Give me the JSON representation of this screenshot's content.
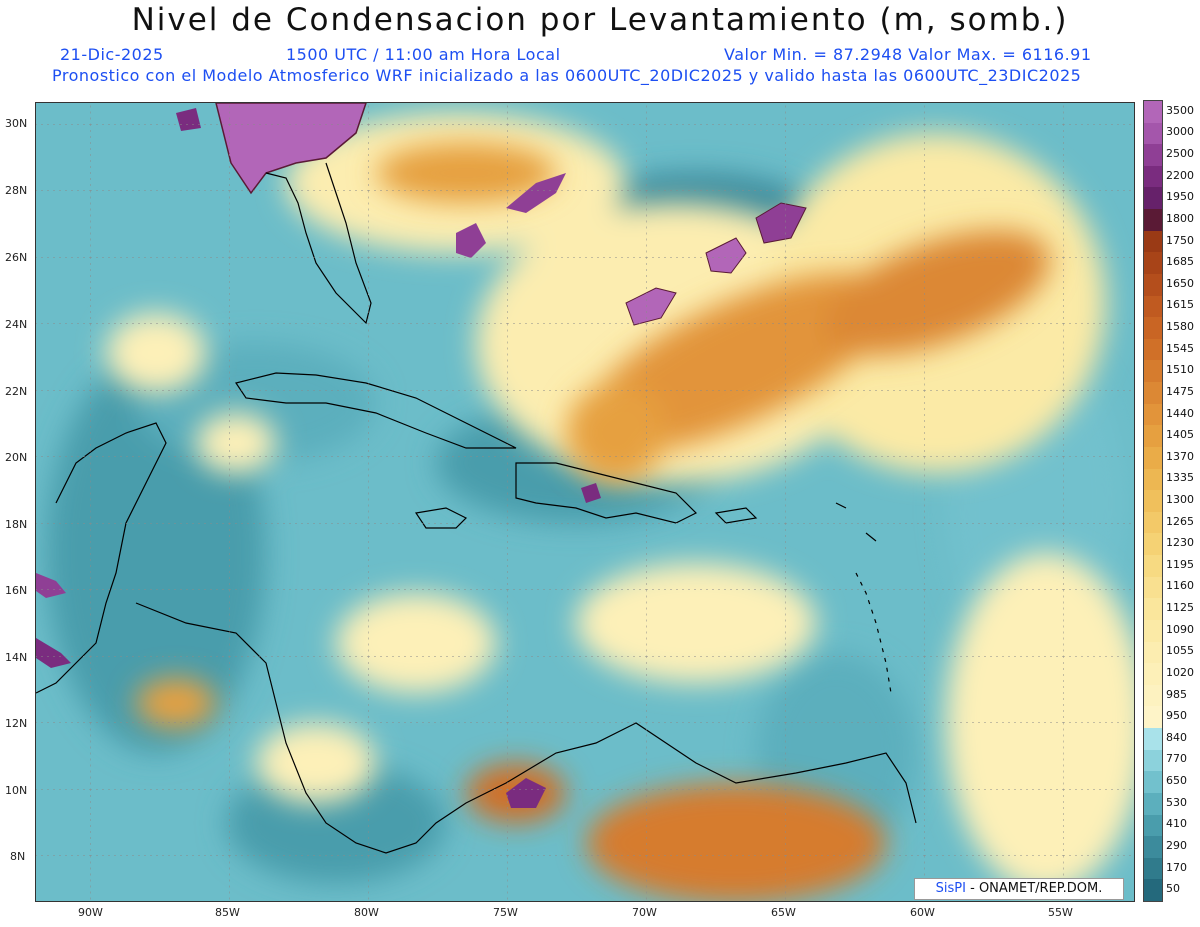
{
  "header": {
    "title": "Nivel de Condensacion por Levantamiento (m, somb.)",
    "date": "21-Dic-2025",
    "time": "1500 UTC / 11:00 am Hora Local",
    "minmax": "Valor Min. = 87.2948   Valor Max. = 6116.91",
    "model_info": "Pronostico con el Modelo Atmosferico WRF inicializado a las 0600UTC_20DIC2025 y valido hasta las  0600UTC_23DIC2025"
  },
  "axes": {
    "lat_labels": [
      "30N",
      "28N",
      "26N",
      "24N",
      "22N",
      "20N",
      "18N",
      "16N",
      "14N",
      "12N",
      "10N",
      "8N"
    ],
    "lon_labels": [
      "90W",
      "85W",
      "80W",
      "75W",
      "70W",
      "65W",
      "60W",
      "55W"
    ]
  },
  "colorbar": {
    "labels": [
      "3500",
      "3000",
      "2500",
      "2200",
      "1950",
      "1800",
      "1750",
      "1685",
      "1650",
      "1615",
      "1580",
      "1545",
      "1510",
      "1475",
      "1440",
      "1405",
      "1370",
      "1335",
      "1300",
      "1265",
      "1230",
      "1195",
      "1160",
      "1125",
      "1090",
      "1055",
      "1020",
      "985",
      "950",
      "840",
      "770",
      "650",
      "530",
      "410",
      "290",
      "170",
      "50"
    ],
    "colors": [
      "#b266b8",
      "#a456ab",
      "#8f3f95",
      "#7a2c7f",
      "#66216a",
      "#5a1a35",
      "#9a3a15",
      "#a84418",
      "#b44e1c",
      "#c05a20",
      "#c96524",
      "#d07028",
      "#d67c2e",
      "#dc8834",
      "#e2943a",
      "#e6a040",
      "#eaac48",
      "#edb752",
      "#f0c05c",
      "#f3c968",
      "#f5d274",
      "#f7da82",
      "#f9e090",
      "#fae69c",
      "#fbeaa6",
      "#fcedb0",
      "#fdf0b8",
      "#fdf2c0",
      "#fef4c8",
      "#a9e2ea",
      "#8cd2dc",
      "#72c1cd",
      "#5cafbd",
      "#4a9dac",
      "#3c8b9c",
      "#307b8c",
      "#24697c"
    ]
  },
  "credit": {
    "logo": "SisPI",
    "text": " - ONAMET/REP.DOM."
  },
  "colors": {
    "subtitle": "#1d4ff2",
    "ocean_base": "#5cafbd",
    "low_lcl": "#fcefb4",
    "high_lcl": "#d67c2e",
    "extreme": "#b266b8",
    "coast": "#000000"
  }
}
